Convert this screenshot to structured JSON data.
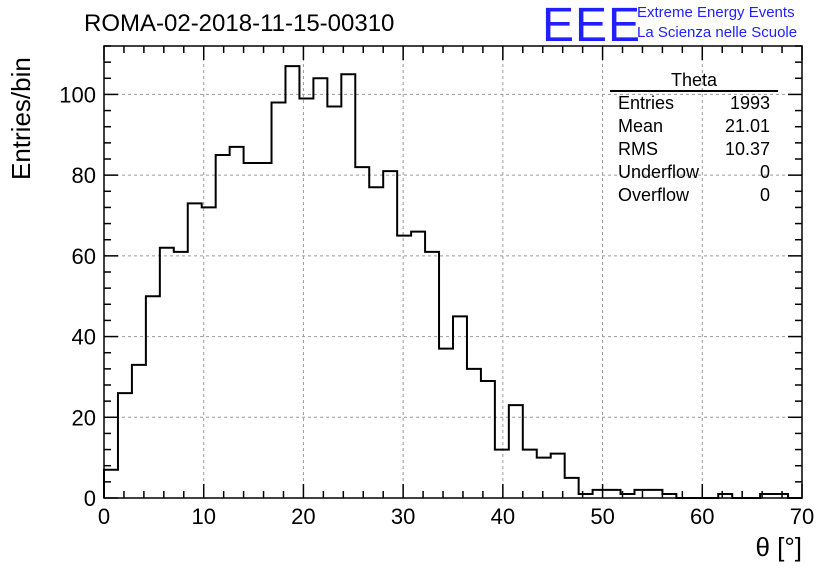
{
  "header": {
    "title": "ROMA-02-2018-11-15-00310",
    "logo": "EEE",
    "logo_line1": "Extreme Energy Events",
    "logo_line2": "La Scienza nelle Scuole"
  },
  "stats": {
    "name": "Theta",
    "rows": [
      {
        "label": "Entries",
        "value": "1993"
      },
      {
        "label": "Mean",
        "value": "21.01"
      },
      {
        "label": "RMS",
        "value": "10.37"
      },
      {
        "label": "Underflow",
        "value": "0"
      },
      {
        "label": "Overflow",
        "value": "0"
      }
    ]
  },
  "chart_data": {
    "type": "histogram",
    "title": "ROMA-02-2018-11-15-00310",
    "xlabel": "θ [°]",
    "ylabel": "Entries/bin",
    "xlim": [
      0,
      70
    ],
    "ylim": [
      0,
      112
    ],
    "grid": true,
    "bin_width": 1.4,
    "x_ticks": [
      0,
      10,
      20,
      30,
      40,
      50,
      60,
      70
    ],
    "y_ticks": [
      0,
      20,
      40,
      60,
      80,
      100
    ],
    "values": [
      7,
      26,
      33,
      50,
      62,
      61,
      73,
      72,
      85,
      87,
      83,
      83,
      98,
      107,
      99,
      104,
      97,
      105,
      82,
      77,
      81,
      65,
      66,
      61,
      37,
      45,
      32,
      29,
      12,
      23,
      12,
      10,
      11,
      5,
      1,
      2,
      2,
      1,
      2,
      2,
      1,
      0,
      0,
      0,
      1,
      0,
      0,
      1,
      1,
      0
    ],
    "line_color": "#000000"
  }
}
